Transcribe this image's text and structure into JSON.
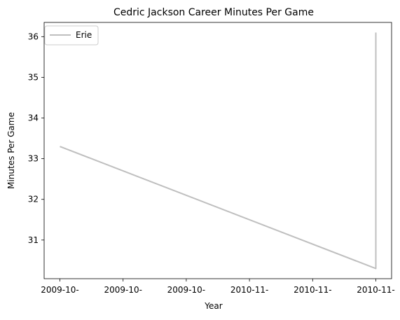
{
  "chart_data": {
    "type": "line",
    "title": "Cedric Jackson Career Minutes Per Game",
    "xlabel": "Year",
    "ylabel": "Minutes Per Game",
    "x_tick_labels": [
      "2009-10-",
      "2009-10-",
      "2009-10-",
      "2010-11-",
      "2010-11-",
      "2010-11-"
    ],
    "y_ticks": [
      31,
      32,
      33,
      34,
      35,
      36
    ],
    "ylim": [
      30.05,
      36.35
    ],
    "grid": false,
    "legend_position": "upper-left",
    "series": [
      {
        "name": "Erie",
        "color": "#bfbfbf",
        "points": [
          {
            "x": "2009-10",
            "y": 33.3
          },
          {
            "x": "2010-11",
            "y": 30.3
          },
          {
            "x": "2010-11",
            "y": 36.1
          }
        ]
      }
    ]
  }
}
